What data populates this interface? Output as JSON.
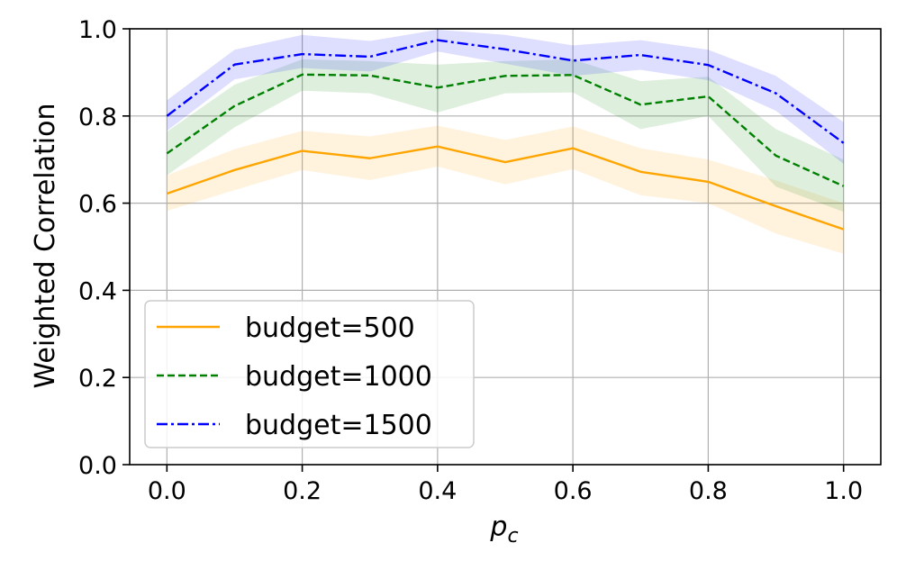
{
  "chart_data": {
    "type": "line",
    "xlabel": "p",
    "xlabel_sub": "c",
    "ylabel": "Weighted Correlation",
    "xlim": [
      -0.055,
      1.055
    ],
    "ylim": [
      0.0,
      1.0
    ],
    "grid": true,
    "legend_placement": "lower-left",
    "x_ticks": [
      "0.0",
      "0.2",
      "0.4",
      "0.6",
      "0.8",
      "1.0"
    ],
    "y_ticks": [
      "0.0",
      "0.2",
      "0.4",
      "0.6",
      "0.8",
      "1.0"
    ],
    "x": [
      0.0,
      0.1,
      0.2,
      0.3,
      0.4,
      0.5,
      0.6,
      0.7,
      0.8,
      0.9,
      1.0
    ],
    "series": [
      {
        "name": "budget=500",
        "color": "#FFA500",
        "dash": "solid",
        "values": [
          0.622,
          0.676,
          0.72,
          0.703,
          0.73,
          0.694,
          0.726,
          0.672,
          0.649,
          0.593,
          0.54
        ],
        "lower": [
          0.582,
          0.63,
          0.676,
          0.653,
          0.684,
          0.643,
          0.678,
          0.618,
          0.6,
          0.53,
          0.484
        ],
        "upper": [
          0.664,
          0.724,
          0.766,
          0.753,
          0.778,
          0.745,
          0.776,
          0.726,
          0.7,
          0.652,
          0.6
        ]
      },
      {
        "name": "budget=1000",
        "color": "#008000",
        "dash": "dashed",
        "values": [
          0.714,
          0.823,
          0.895,
          0.893,
          0.865,
          0.892,
          0.894,
          0.826,
          0.845,
          0.709,
          0.639
        ],
        "lower": [
          0.664,
          0.774,
          0.858,
          0.852,
          0.808,
          0.852,
          0.854,
          0.77,
          0.8,
          0.638,
          0.58
        ],
        "upper": [
          0.764,
          0.872,
          0.93,
          0.926,
          0.918,
          0.926,
          0.93,
          0.88,
          0.89,
          0.77,
          0.7
        ]
      },
      {
        "name": "budget=1500",
        "color": "#0000FF",
        "dash": "dashdot",
        "values": [
          0.8,
          0.918,
          0.942,
          0.936,
          0.974,
          0.953,
          0.927,
          0.94,
          0.917,
          0.852,
          0.738
        ],
        "lower": [
          0.766,
          0.884,
          0.91,
          0.902,
          0.948,
          0.92,
          0.892,
          0.906,
          0.882,
          0.812,
          0.69
        ],
        "upper": [
          0.836,
          0.952,
          0.986,
          0.972,
          0.998,
          0.986,
          0.962,
          0.974,
          0.952,
          0.892,
          0.786
        ]
      }
    ]
  }
}
